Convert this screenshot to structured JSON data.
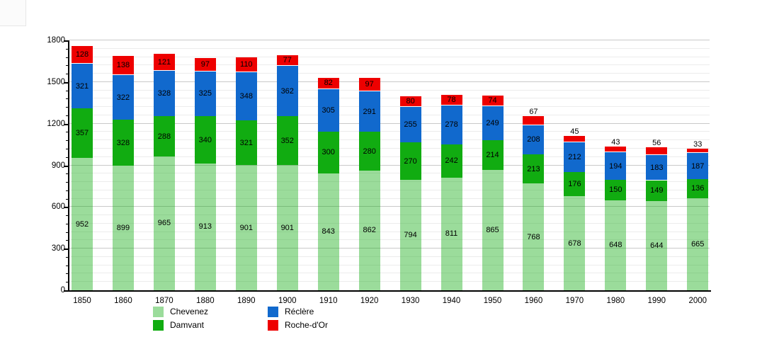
{
  "chart_data": {
    "type": "bar",
    "stacked": true,
    "title": "",
    "categories": [
      "1850",
      "1860",
      "1870",
      "1880",
      "1890",
      "1900",
      "1910",
      "1920",
      "1930",
      "1940",
      "1950",
      "1960",
      "1970",
      "1980",
      "1990",
      "2000"
    ],
    "series": [
      {
        "name": "Chevenez",
        "key": "chevenez",
        "color": "rgba(17,172,17,0.42)",
        "legend_color": "#9bdc9b",
        "values": [
          952,
          899,
          965,
          913,
          901,
          901,
          843,
          862,
          794,
          811,
          865,
          768,
          678,
          648,
          644,
          665
        ]
      },
      {
        "name": "Damvant",
        "key": "damvant",
        "color": "#11ac11",
        "legend_color": "#11ac11",
        "values": [
          357,
          328,
          288,
          340,
          321,
          352,
          300,
          280,
          270,
          242,
          214,
          213,
          176,
          150,
          149,
          136
        ]
      },
      {
        "name": "Réclère",
        "key": "reclere",
        "color": "#1169cd",
        "legend_color": "#1169cd",
        "values": [
          321,
          322,
          328,
          325,
          348,
          362,
          305,
          291,
          255,
          278,
          249,
          208,
          212,
          194,
          183,
          187
        ]
      },
      {
        "name": "Roche-d'Or",
        "key": "roche-dor",
        "color": "#ee0000",
        "legend_color": "#ee0000",
        "values": [
          128,
          138,
          121,
          97,
          110,
          77,
          82,
          97,
          80,
          78,
          74,
          67,
          45,
          43,
          56,
          33
        ]
      }
    ],
    "xlabel": "",
    "ylabel": "",
    "ylim": [
      0,
      1800
    ],
    "yticks": {
      "major_step": 300,
      "minor_step": 60,
      "labels": [
        "0",
        "300",
        "600",
        "900",
        "1200",
        "1500",
        "1800"
      ]
    },
    "grid": true,
    "legend": {
      "position": "bottom",
      "items": [
        "Chevenez",
        "Damvant",
        "Réclère",
        "Roche-d'Or"
      ]
    }
  }
}
